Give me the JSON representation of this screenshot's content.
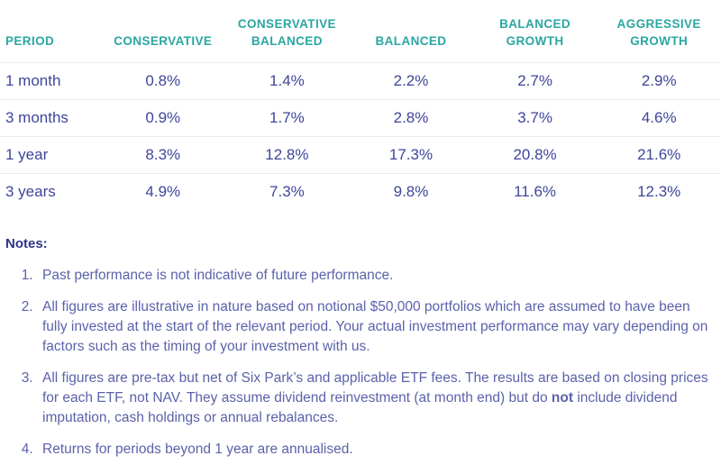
{
  "chart_data": {
    "type": "table",
    "columns": [
      "PERIOD",
      "CONSERVATIVE",
      "CONSERVATIVE BALANCED",
      "BALANCED",
      "BALANCED GROWTH",
      "AGGRESSIVE GROWTH"
    ],
    "rows": [
      [
        "1 month",
        "0.8%",
        "1.4%",
        "2.2%",
        "2.7%",
        "2.9%"
      ],
      [
        "3 months",
        "0.9%",
        "1.7%",
        "2.8%",
        "3.7%",
        "4.6%"
      ],
      [
        "1 year",
        "8.3%",
        "12.8%",
        "17.3%",
        "20.8%",
        "21.6%"
      ],
      [
        "3 years",
        "4.9%",
        "7.3%",
        "9.8%",
        "11.6%",
        "12.3%"
      ]
    ],
    "layout": {
      "first_column_align": "left",
      "value_columns_align": "center",
      "row_dividers": true,
      "outer_borders": false
    }
  },
  "notes": {
    "heading": "Notes:",
    "item1": "Past performance is not indicative of future performance.",
    "item2": "All figures are illustrative in nature based on notional $50,000 portfolios which are assumed to have been fully invested at the start of the relevant period. Your actual investment performance may vary depending on factors such as the timing of your investment with us.",
    "item3_pre": "All figures are pre-tax but net of Six Park’s and applicable ETF fees. The results are based on closing prices for each ETF, not NAV. They assume dividend reinvestment (at month end) but do ",
    "item3_bold": "not",
    "item3_post": " include dividend imputation, cash holdings or annual rebalances.",
    "item4": "Returns for periods beyond 1 year are annualised."
  },
  "colors": {
    "header_text": "#2aa7a1",
    "cell_text": "#3e4699",
    "notes_heading_text": "#2e3487",
    "notes_body_text": "#5b62aa",
    "row_divider": "#e9ecf3",
    "background": "#ffffff"
  }
}
